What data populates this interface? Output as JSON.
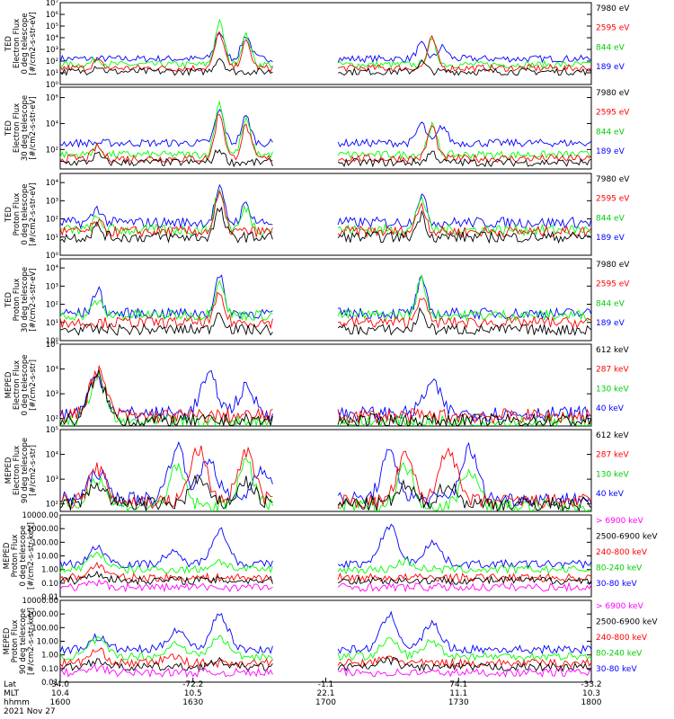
{
  "colors": {
    "black": "#000000",
    "blue": "#0000ff",
    "red": "#ff0000",
    "green": "#00ff00",
    "magenta": "#ff00ff"
  },
  "chart_data": [
    {
      "type": "line",
      "panel": 1,
      "log_y": true,
      "ylabel": [
        "TED",
        "Electron Flux",
        "0 deg telescope",
        "[#/cm2-s-str-eV]"
      ],
      "yticks": [
        "10⁰",
        "10¹",
        "10²",
        "10³",
        "10⁴",
        "10⁵",
        "10⁶",
        "10⁷"
      ],
      "ylim": [
        0,
        7
      ],
      "series": [
        {
          "name": "7980 eV",
          "color": "black",
          "base": 1.1,
          "peaks": [
            [
              0.07,
              0.5
            ],
            [
              0.3,
              1.2
            ],
            [
              0.68,
              0.8
            ]
          ]
        },
        {
          "name": "2595 eV",
          "color": "red",
          "base": 1.4,
          "peaks": [
            [
              0.07,
              0.6
            ],
            [
              0.3,
              3.0
            ],
            [
              0.35,
              2.2
            ],
            [
              0.7,
              2.5
            ]
          ]
        },
        {
          "name": "844 eV",
          "color": "green",
          "base": 1.7,
          "peaks": [
            [
              0.07,
              0.5
            ],
            [
              0.3,
              3.6
            ],
            [
              0.35,
              2.5
            ],
            [
              0.7,
              2.0
            ]
          ]
        },
        {
          "name": "189 eV",
          "color": "blue",
          "base": 2.2,
          "peaks": [
            [
              0.3,
              2.3
            ],
            [
              0.35,
              2.0
            ],
            [
              0.68,
              1.2
            ],
            [
              0.72,
              1.0
            ]
          ]
        }
      ]
    },
    {
      "type": "line",
      "panel": 2,
      "log_y": true,
      "ylabel": [
        "TED",
        "Electron Flux",
        "30 deg telescope",
        "[#/cm2-s-str-eV]"
      ],
      "yticks": [
        "10²",
        "10⁴",
        "10⁶"
      ],
      "ylim": [
        0.5,
        6.8
      ],
      "series": [
        {
          "name": "7980 eV",
          "color": "black",
          "base": 1.0,
          "peaks": [
            [
              0.07,
              0.6
            ],
            [
              0.3,
              1.0
            ],
            [
              0.7,
              0.8
            ]
          ]
        },
        {
          "name": "2595 eV",
          "color": "red",
          "base": 1.3,
          "peaks": [
            [
              0.07,
              0.9
            ],
            [
              0.3,
              3.5
            ],
            [
              0.35,
              2.5
            ],
            [
              0.7,
              2.5
            ]
          ]
        },
        {
          "name": "844 eV",
          "color": "green",
          "base": 1.6,
          "peaks": [
            [
              0.07,
              0.6
            ],
            [
              0.3,
              4.0
            ],
            [
              0.35,
              2.6
            ],
            [
              0.7,
              2.2
            ]
          ]
        },
        {
          "name": "189 eV",
          "color": "blue",
          "base": 2.5,
          "peaks": [
            [
              0.3,
              2.5
            ],
            [
              0.35,
              2.0
            ],
            [
              0.68,
              1.5
            ],
            [
              0.72,
              1.3
            ]
          ]
        }
      ]
    },
    {
      "type": "line",
      "panel": 3,
      "log_y": true,
      "ylabel": [
        "TED",
        "Proton Flux",
        "0 deg telescope",
        "[#/cm2-s-str-eV]"
      ],
      "yticks": [
        "10⁰",
        "10¹",
        "10²",
        "10³",
        "10⁴"
      ],
      "ylim": [
        0,
        4.5
      ],
      "series": [
        {
          "name": "7980 eV",
          "color": "black",
          "base": 1.0,
          "peaks": [
            [
              0.07,
              0.6
            ],
            [
              0.3,
              1.5
            ],
            [
              0.68,
              1.2
            ]
          ]
        },
        {
          "name": "2595 eV",
          "color": "red",
          "base": 1.3,
          "peaks": [
            [
              0.07,
              0.5
            ],
            [
              0.3,
              2.0
            ],
            [
              0.68,
              1.5
            ]
          ]
        },
        {
          "name": "844 eV",
          "color": "green",
          "base": 1.4,
          "peaks": [
            [
              0.07,
              0.6
            ],
            [
              0.3,
              2.2
            ],
            [
              0.35,
              1.2
            ],
            [
              0.68,
              1.8
            ]
          ]
        },
        {
          "name": "189 eV",
          "color": "blue",
          "base": 1.8,
          "peaks": [
            [
              0.07,
              0.8
            ],
            [
              0.3,
              1.8
            ],
            [
              0.35,
              1.0
            ],
            [
              0.68,
              1.5
            ]
          ]
        }
      ]
    },
    {
      "type": "line",
      "panel": 4,
      "log_y": true,
      "ylabel": [
        "TED",
        "Proton Flux",
        "30 deg telescope",
        "[#/cm2-s-str-eV]"
      ],
      "yticks": [
        "10⁰",
        "10¹",
        "10²",
        "10³",
        "10⁴"
      ],
      "ylim": [
        0,
        4.5
      ],
      "series": [
        {
          "name": "7980 eV",
          "color": "black",
          "base": 0.6,
          "peaks": [
            [
              0.3,
              1.0
            ],
            [
              0.68,
              1.0
            ]
          ]
        },
        {
          "name": "2595 eV",
          "color": "red",
          "base": 1.0,
          "peaks": [
            [
              0.3,
              1.5
            ],
            [
              0.68,
              1.5
            ]
          ]
        },
        {
          "name": "844 eV",
          "color": "green",
          "base": 1.4,
          "peaks": [
            [
              0.07,
              0.8
            ],
            [
              0.3,
              2.0
            ],
            [
              0.68,
              2.0
            ]
          ]
        },
        {
          "name": "189 eV",
          "color": "blue",
          "base": 1.5,
          "peaks": [
            [
              0.07,
              1.3
            ],
            [
              0.3,
              2.0
            ],
            [
              0.68,
              1.8
            ]
          ]
        }
      ]
    },
    {
      "type": "line",
      "panel": 5,
      "log_y": true,
      "ylabel": [
        "MEPED",
        "Electron Flux",
        "0 deg telescope",
        "[#/cm2-s-str]"
      ],
      "yticks": [
        "10²",
        "10³",
        "10⁴",
        "10⁵"
      ],
      "ylim": [
        1.7,
        5.0
      ],
      "series": [
        {
          "name": "612 keV",
          "color": "black",
          "base": 1.9,
          "peaks": [
            [
              0.07,
              1.8
            ]
          ]
        },
        {
          "name": "287 keV",
          "color": "red",
          "base": 2.1,
          "peaks": [
            [
              0.07,
              1.8
            ]
          ]
        },
        {
          "name": "130 keV",
          "color": "green",
          "base": 1.85,
          "peaks": [
            [
              0.07,
              1.8
            ]
          ]
        },
        {
          "name": "40 keV",
          "color": "blue",
          "base": 2.2,
          "peaks": [
            [
              0.07,
              1.5
            ],
            [
              0.28,
              1.5
            ],
            [
              0.35,
              1.0
            ],
            [
              0.7,
              1.2
            ]
          ]
        }
      ]
    },
    {
      "type": "line",
      "panel": 6,
      "log_y": true,
      "ylabel": [
        "MEPED",
        "Electron Flux",
        "90 deg telescope",
        "[#/cm2-s-str]"
      ],
      "yticks": [
        "10²",
        "10³",
        "10⁴",
        "10⁵"
      ],
      "ylim": [
        1.7,
        5.0
      ],
      "series": [
        {
          "name": "612 keV",
          "color": "black",
          "base": 2.0,
          "peaks": [
            [
              0.07,
              0.8
            ],
            [
              0.26,
              1.0
            ],
            [
              0.35,
              0.9
            ],
            [
              0.65,
              0.7
            ],
            [
              0.73,
              0.8
            ]
          ]
        },
        {
          "name": "287 keV",
          "color": "red",
          "base": 2.1,
          "peaks": [
            [
              0.07,
              1.3
            ],
            [
              0.26,
              2.1
            ],
            [
              0.35,
              2.0
            ],
            [
              0.65,
              1.8
            ],
            [
              0.73,
              2.2
            ]
          ]
        },
        {
          "name": "130 keV",
          "color": "green",
          "base": 1.9,
          "peaks": [
            [
              0.07,
              1.2
            ],
            [
              0.22,
              1.5
            ],
            [
              0.35,
              1.7
            ],
            [
              0.65,
              1.6
            ],
            [
              0.77,
              1.5
            ]
          ]
        },
        {
          "name": "40 keV",
          "color": "blue",
          "base": 2.2,
          "peaks": [
            [
              0.07,
              1.1
            ],
            [
              0.22,
              2.1
            ],
            [
              0.28,
              1.6
            ],
            [
              0.38,
              1.3
            ],
            [
              0.62,
              1.8
            ],
            [
              0.77,
              2.0
            ]
          ]
        }
      ]
    },
    {
      "type": "line",
      "panel": 7,
      "log_y": true,
      "ylabel": [
        "MEPED",
        "Proton Flux",
        "0 deg telescope",
        "[#/cm2-s-str-keV]"
      ],
      "yticks": [
        "0.01",
        "0.10",
        "1.00",
        "10.00",
        "100.00",
        "1000.00",
        "10000.00"
      ],
      "ylim": [
        -2,
        4
      ],
      "series": [
        {
          "name": "> 6900 keV",
          "color": "magenta",
          "base": -1.3,
          "peaks": [
            [
              0.07,
              0.3
            ]
          ]
        },
        {
          "name": "2500-6900 keV",
          "color": "black",
          "base": -0.8,
          "peaks": [
            [
              0.07,
              0.5
            ]
          ]
        },
        {
          "name": "240-800 keV",
          "color": "red",
          "base": -0.6,
          "peaks": [
            [
              0.07,
              0.9
            ]
          ]
        },
        {
          "name": "80-240 keV",
          "color": "green",
          "base": 0.0,
          "peaks": [
            [
              0.07,
              1.2
            ],
            [
              0.3,
              0.6
            ],
            [
              0.65,
              0.6
            ]
          ]
        },
        {
          "name": "30-80 keV",
          "color": "blue",
          "base": 0.4,
          "peaks": [
            [
              0.07,
              1.2
            ],
            [
              0.21,
              0.8
            ],
            [
              0.3,
              2.5
            ],
            [
              0.62,
              2.8
            ],
            [
              0.7,
              1.6
            ]
          ]
        }
      ]
    },
    {
      "type": "line",
      "panel": 8,
      "log_y": true,
      "ylabel": [
        "MEPED",
        "Proton Flux",
        "90 deg telescope",
        "[#/cm2-s-str-keV]"
      ],
      "yticks": [
        "0.01",
        "0.10",
        "1.00",
        "10.00",
        "100.00",
        "1000.00",
        "10000.00"
      ],
      "ylim": [
        -2,
        4
      ],
      "series": [
        {
          "name": "> 6900 keV",
          "color": "magenta",
          "base": -1.3,
          "peaks": [
            [
              0.07,
              0.3
            ]
          ]
        },
        {
          "name": "2500-6900 keV",
          "color": "black",
          "base": -0.9,
          "peaks": [
            [
              0.07,
              0.5
            ],
            [
              0.3,
              0.4
            ],
            [
              0.62,
              0.5
            ]
          ]
        },
        {
          "name": "240-800 keV",
          "color": "red",
          "base": -0.6,
          "peaks": [
            [
              0.07,
              0.9
            ],
            [
              0.21,
              0.5
            ],
            [
              0.62,
              0.4
            ]
          ]
        },
        {
          "name": "80-240 keV",
          "color": "green",
          "base": -0.1,
          "peaks": [
            [
              0.07,
              1.2
            ],
            [
              0.22,
              1.0
            ],
            [
              0.3,
              1.4
            ],
            [
              0.62,
              1.2
            ],
            [
              0.7,
              1.1
            ]
          ]
        },
        {
          "name": "30-80 keV",
          "color": "blue",
          "base": 0.4,
          "peaks": [
            [
              0.07,
              0.9
            ],
            [
              0.22,
              1.5
            ],
            [
              0.3,
              2.6
            ],
            [
              0.62,
              2.5
            ],
            [
              0.7,
              1.9
            ]
          ]
        }
      ]
    }
  ],
  "x_axis": {
    "row_labels": [
      "Lat",
      "MLT",
      "hhmm"
    ],
    "ticks": [
      {
        "pos": 0.0,
        "lat": "34.0",
        "mlt": "10.4",
        "hhmm": "1600"
      },
      {
        "pos": 0.25,
        "lat": "-72.2",
        "mlt": "10.5",
        "hhmm": "1630"
      },
      {
        "pos": 0.5,
        "lat": "-1.1",
        "mlt": "22.1",
        "hhmm": "1700"
      },
      {
        "pos": 0.75,
        "lat": "74.1",
        "mlt": "11.1",
        "hhmm": "1730"
      },
      {
        "pos": 1.0,
        "lat": "-33.2",
        "mlt": "10.3",
        "hhmm": "1800"
      }
    ],
    "date": "2021 Nov 27"
  }
}
